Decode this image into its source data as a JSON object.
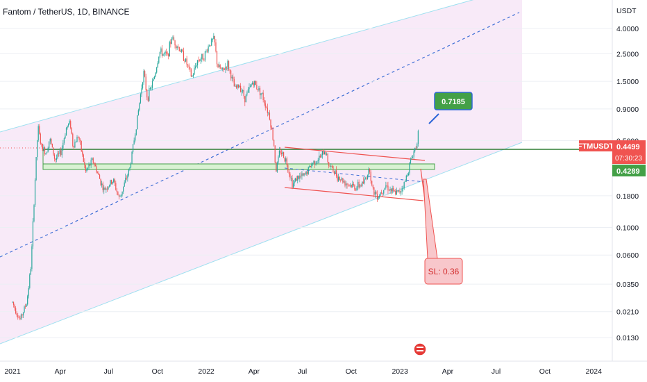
{
  "header": {
    "title": "Fantom / TetherUS, 1D, BINANCE"
  },
  "chart_data": {
    "type": "candlestick",
    "symbol": "FTMUSDT",
    "currency_label": "USDT",
    "scale": "log",
    "y_ticks": [
      "4.0000",
      "2.5000",
      "1.5000",
      "0.9000",
      "0.5000",
      "0.1800",
      "0.1000",
      "0.0600",
      "0.0350",
      "0.0210",
      "0.0130"
    ],
    "x_ticks": [
      "2021",
      "Apr",
      "Jul",
      "Oct",
      "2022",
      "Apr",
      "Jul",
      "Oct",
      "2023",
      "Apr",
      "Jul",
      "Oct",
      "2024"
    ],
    "last_price": "0.4499",
    "countdown": "07:30:23",
    "support_level": "0.4289",
    "target_label": "0.7185",
    "stop_loss_label": "SL: 0.36",
    "price_path": [
      [
        "2021-01-01",
        0.025
      ],
      [
        "2021-01-15",
        0.018
      ],
      [
        "2021-01-28",
        0.025
      ],
      [
        "2021-02-05",
        0.05
      ],
      [
        "2021-02-12",
        0.22
      ],
      [
        "2021-02-18",
        0.65
      ],
      [
        "2021-02-24",
        0.45
      ],
      [
        "2021-03-05",
        0.4
      ],
      [
        "2021-03-12",
        0.52
      ],
      [
        "2021-03-22",
        0.35
      ],
      [
        "2021-04-02",
        0.4
      ],
      [
        "2021-04-13",
        0.65
      ],
      [
        "2021-04-20",
        0.7
      ],
      [
        "2021-04-25",
        0.45
      ],
      [
        "2021-05-05",
        0.55
      ],
      [
        "2021-05-19",
        0.28
      ],
      [
        "2021-06-01",
        0.35
      ],
      [
        "2021-06-22",
        0.2
      ],
      [
        "2021-07-10",
        0.24
      ],
      [
        "2021-07-21",
        0.17
      ],
      [
        "2021-08-10",
        0.3
      ],
      [
        "2021-08-25",
        0.8
      ],
      [
        "2021-09-05",
        1.8
      ],
      [
        "2021-09-12",
        1.1
      ],
      [
        "2021-09-25",
        1.6
      ],
      [
        "2021-10-05",
        2.6
      ],
      [
        "2021-10-20",
        2.4
      ],
      [
        "2021-10-28",
        3.4
      ],
      [
        "2021-11-05",
        3.0
      ],
      [
        "2021-11-15",
        2.6
      ],
      [
        "2021-11-25",
        2.1
      ],
      [
        "2021-12-05",
        1.6
      ],
      [
        "2021-12-15",
        2.2
      ],
      [
        "2021-12-28",
        2.4
      ],
      [
        "2022-01-07",
        3.0
      ],
      [
        "2022-01-16",
        3.3
      ],
      [
        "2022-01-22",
        2.0
      ],
      [
        "2022-02-01",
        1.8
      ],
      [
        "2022-02-10",
        2.1
      ],
      [
        "2022-02-24",
        1.3
      ],
      [
        "2022-03-05",
        1.4
      ],
      [
        "2022-03-15",
        1.1
      ],
      [
        "2022-03-30",
        1.5
      ],
      [
        "2022-04-15",
        1.2
      ],
      [
        "2022-04-30",
        0.8
      ],
      [
        "2022-05-09",
        0.45
      ],
      [
        "2022-05-12",
        0.28
      ],
      [
        "2022-05-20",
        0.42
      ],
      [
        "2022-05-31",
        0.35
      ],
      [
        "2022-06-13",
        0.22
      ],
      [
        "2022-06-20",
        0.25
      ],
      [
        "2022-07-05",
        0.26
      ],
      [
        "2022-07-20",
        0.33
      ],
      [
        "2022-08-05",
        0.37
      ],
      [
        "2022-08-13",
        0.42
      ],
      [
        "2022-08-20",
        0.32
      ],
      [
        "2022-09-05",
        0.26
      ],
      [
        "2022-09-20",
        0.23
      ],
      [
        "2022-10-10",
        0.21
      ],
      [
        "2022-10-25",
        0.23
      ],
      [
        "2022-11-05",
        0.3
      ],
      [
        "2022-11-10",
        0.2
      ],
      [
        "2022-11-21",
        0.18
      ],
      [
        "2022-12-05",
        0.22
      ],
      [
        "2022-12-20",
        0.19
      ],
      [
        "2022-12-30",
        0.19
      ],
      [
        "2023-01-10",
        0.23
      ],
      [
        "2023-01-20",
        0.33
      ],
      [
        "2023-01-28",
        0.42
      ],
      [
        "2023-02-01",
        0.47
      ],
      [
        "2023-02-04",
        0.58
      ],
      [
        "2023-02-06",
        0.4499
      ]
    ]
  },
  "colors": {
    "up": "#26a69a",
    "down": "#ef5350",
    "channel_fill": "#f7e8f7",
    "channel_line": "#9fe0f0",
    "midline": "#3f6fd6",
    "support": "#2e7d32",
    "target_badge": "#43a047",
    "sl_badge": "#f8c7cb",
    "price_badge": "#f05350"
  }
}
